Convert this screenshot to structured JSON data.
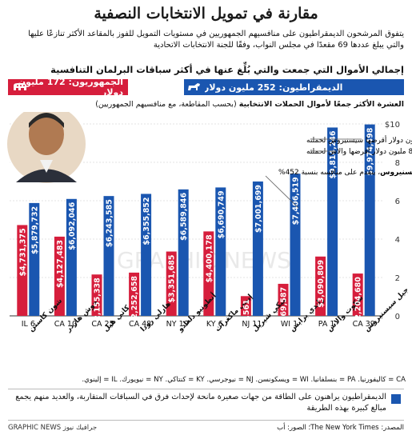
{
  "header": {
    "title": "مقارنة في تمويل الانتخابات النصفية",
    "subtitle": "يتفوق المرشحون الديمقراطيون على منافسيهم الجمهوريين في مستويات التمويل للفوز بالمقاعد الأكثر تنازعًا عليها والتي يبلغ عددها 69 مقعدًا في مجلس النواب، وفقًا للجنة الانتخابات الاتحادية",
    "section": "إجمالي الأموال التي جمعت والتي بُلِّغ عنها في أكثر سباقات البرلمان التنافسية"
  },
  "totals": {
    "dem": "الديمقراطيون: 252 مليون دولار",
    "rep": "الجمهوريون: 172 مليون دولار",
    "dem_icon": "donkey-icon",
    "rep_icon": "elephant-icon",
    "dem_color": "#1a56b0",
    "rep_color": "#d61e3c"
  },
  "chart_sub": {
    "bold": "العشرة الأكثر جمعًا لأموال الحملات الانتخابية",
    "rest": " (بحسب المقاطعة، مع منافسيهم الجمهوريين)"
  },
  "annotations": {
    "callout": "جيل سيسنيروس",
    "callout_rest": "، يتقدم على منافسه بنسبة 452%",
    "note1": "يتضمن 8 مليون دولار أقرضها سيسنيروس لحملته",
    "note2": "يتضمن 8.8 مليون دولار أقرضها والاس لحملته"
  },
  "notes": "CA = كاليفورنيا. PA = بنسلفانيا. WI = ويسكونسن. NJ = نيوجرسي. KY = كنتاكي. NY = نيويورك. IL = إلينوي.",
  "footer": {
    "text": "الديمقراطيون يراهنون على الطاقة من جهات صغيرة مانحة لإحداث فرق في السباقات المتقاربة، والعديد منهم يجمع مبالغ كبيرة بهذه الطريقة"
  },
  "source": "المصدر: The New York Times؛ الصور: أب",
  "credit": "GRAPHIC NEWS جرافيك نيوز",
  "watermark": "GRAPHIC NEWS",
  "chart_data": {
    "type": "bar",
    "ylim": [
      0,
      10
    ],
    "yticks": [
      "0",
      "2",
      "4",
      "6",
      "8",
      "$10"
    ],
    "categories": [
      "IL 6",
      "CA 10",
      "CA 25",
      "CA 48",
      "NY 19",
      "KY 6",
      "NJ 11",
      "WI 1",
      "PA 1",
      "CA 39"
    ],
    "candidates": [
      "شون كاستن",
      "جوش هاردر",
      "كاتي هيل",
      "هارلي رودا",
      "أنطونيو دلغادو",
      "إيمي ماكغراث",
      "ميكي شيريل",
      "راندي برايس",
      "سكوت والاس",
      "جيل سيسنيروس"
    ],
    "series": [
      {
        "name": "الجمهوريون",
        "values": [
          4.731375,
          4.127483,
          2.155338,
          2.252658,
          3.351685,
          4.400178,
          1.028561,
          1.669587,
          3.090809,
          2.20468
        ]
      },
      {
        "name": "الديمقراطيون",
        "values": [
          5.879732,
          6.092046,
          6.243585,
          6.355852,
          6.589846,
          6.690749,
          7.001699,
          7.406519,
          9.814246,
          9.974498
        ]
      }
    ],
    "rep_labels": [
      "$4,731,375",
      "$4,127,483",
      "$2,155,338",
      "$2,252,658",
      "$3,351,685",
      "$4,400,178",
      "$1,028,561",
      "$1,669,587",
      "$3,090,809",
      "$2,204,680"
    ],
    "dem_labels": [
      "$5,879,732",
      "$6,092,046",
      "$6,243,585",
      "$6,355,852",
      "$6,589,846",
      "$6,690,749",
      "$7,001,699",
      "$7,406,519",
      "$9,814,246",
      "$9,974,498"
    ]
  }
}
